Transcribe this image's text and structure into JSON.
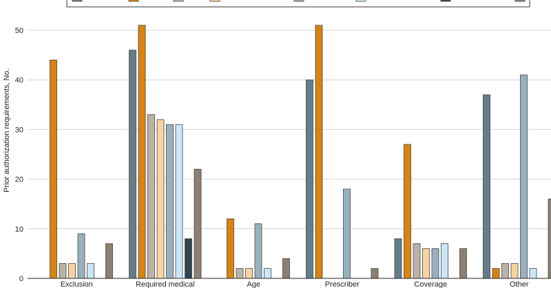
{
  "chart_data": {
    "type": "bar",
    "title": "",
    "xlabel": "",
    "ylabel": "Prior authorization requirements, No.",
    "ylim": [
      0,
      55
    ],
    "yticks": [
      0,
      10,
      20,
      30,
      40,
      50
    ],
    "grid": true,
    "legend_position": "top",
    "categories": [
      "Exclusion",
      "Required medical",
      "Age",
      "Prescriber",
      "Coverage",
      "Other"
    ],
    "series": [
      {
        "color": "#647d89",
        "values": [
          0,
          46,
          0,
          40,
          8,
          37
        ]
      },
      {
        "color": "#d9840f",
        "values": [
          44,
          51,
          12,
          51,
          27,
          2
        ]
      },
      {
        "color": "#bcb2a5",
        "values": [
          3,
          33,
          2,
          0,
          7,
          3
        ]
      },
      {
        "color": "#f6d4a1",
        "values": [
          3,
          32,
          2,
          0,
          6,
          3
        ]
      },
      {
        "color": "#99b1bf",
        "values": [
          9,
          31,
          11,
          18,
          6,
          41
        ]
      },
      {
        "color": "#c9e7f7",
        "values": [
          3,
          31,
          2,
          0,
          7,
          2
        ]
      },
      {
        "color": "#2f4751",
        "values": [
          0,
          8,
          0,
          0,
          0,
          0
        ]
      },
      {
        "color": "#8d8072",
        "values": [
          7,
          22,
          4,
          2,
          6,
          16
        ]
      }
    ]
  }
}
